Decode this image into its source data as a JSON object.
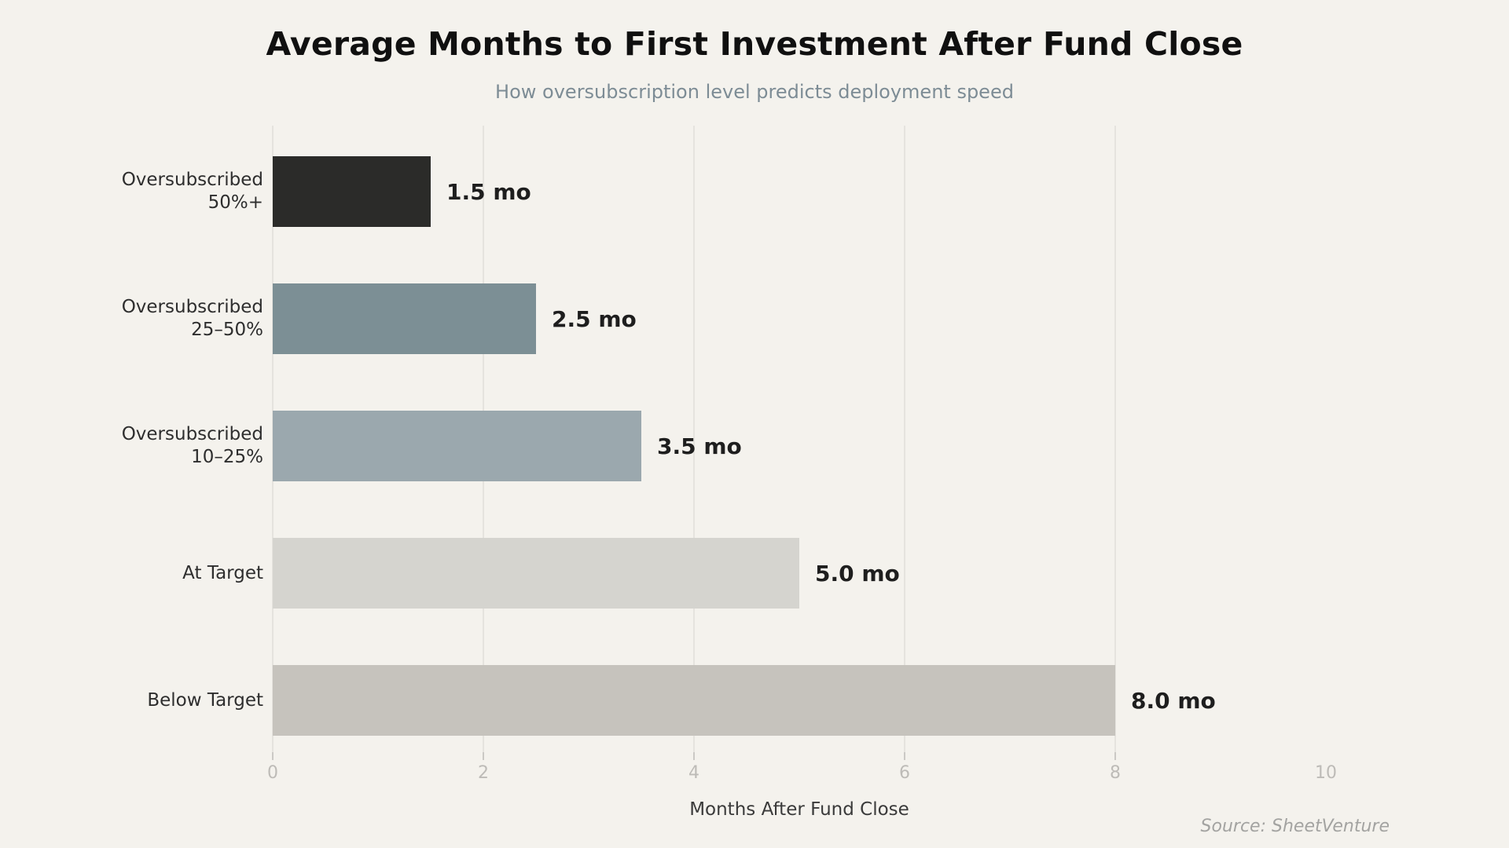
{
  "header": {
    "title": "Average Months to First Investment After Fund Close",
    "subtitle": "How oversubscription level predicts deployment speed"
  },
  "footer": {
    "source": "Source: SheetVenture"
  },
  "colors": {
    "background": "#F4F2ED",
    "gridline": "#E5E3DE",
    "tick_label": "#BDBBB7",
    "subtitle_text": "#7D8C95",
    "bar_colors": [
      "#2B2B29",
      "#7C8F95",
      "#9BA8AE",
      "#D5D4CF",
      "#C6C3BD"
    ]
  },
  "chart_data": {
    "type": "bar",
    "orientation": "horizontal",
    "title": "Average Months to First Investment After Fund Close",
    "subtitle": "How oversubscription level predicts deployment speed",
    "categories": [
      "Oversubscribed 50%+",
      "Oversubscribed 25–50%",
      "Oversubscribed 10–25%",
      "At Target",
      "Below Target"
    ],
    "category_lines": [
      [
        "Oversubscribed",
        "50%+"
      ],
      [
        "Oversubscribed",
        "25–50%"
      ],
      [
        "Oversubscribed",
        "10–25%"
      ],
      [
        "At Target"
      ],
      [
        "Below Target"
      ]
    ],
    "values": [
      1.5,
      2.5,
      3.5,
      5.0,
      8.0
    ],
    "value_labels": [
      "1.5 mo",
      "2.5 mo",
      "3.5 mo",
      "5.0 mo",
      "8.0 mo"
    ],
    "bar_colors": [
      "#2B2B29",
      "#7C8F95",
      "#9BA8AE",
      "#D5D4CF",
      "#C6C3BD"
    ],
    "xlabel": "Months After Fund Close",
    "ylabel": "",
    "xlim": [
      0,
      10.5
    ],
    "xticks": [
      0,
      2,
      4,
      6,
      8,
      10
    ],
    "grid_ticks": [
      0,
      2,
      4,
      6,
      8
    ],
    "grid": "vertical",
    "legend": "none",
    "source": "Source: SheetVenture"
  }
}
